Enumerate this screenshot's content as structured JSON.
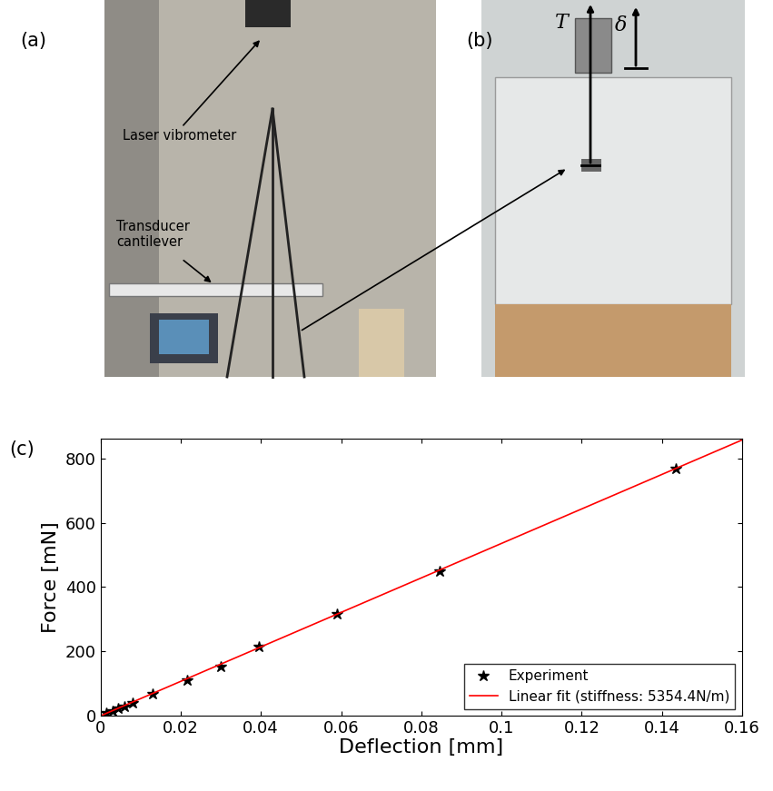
{
  "panels": {
    "a": {
      "label": "(a)",
      "annotations": [
        "Laser vibrometer",
        "Transducer\ncantilever"
      ]
    },
    "b": {
      "label": "(b)",
      "annotations": [
        "T",
        "δ"
      ]
    },
    "c": {
      "label": "(c)"
    }
  },
  "chart_data": {
    "type": "scatter",
    "x_label": "Deflection [mm]",
    "y_label": "Force [mN]",
    "xlim": [
      0,
      0.16
    ],
    "xticks": [
      0,
      0.02,
      0.04,
      0.06,
      0.08,
      0.1,
      0.12,
      0.14,
      0.16
    ],
    "ylim": [
      0,
      860
    ],
    "yticks": [
      0,
      200,
      400,
      600,
      800
    ],
    "grid": false,
    "legend": "lower right",
    "series": [
      {
        "name": "Experiment",
        "type": "scatter",
        "color": "#000000",
        "marker": "star",
        "x": [
          0.0015,
          0.003,
          0.0045,
          0.006,
          0.008,
          0.013,
          0.0215,
          0.03,
          0.0395,
          0.059,
          0.0845,
          0.1435
        ],
        "values": [
          8,
          15,
          22,
          30,
          40,
          68,
          112,
          152,
          215,
          318,
          448,
          768
        ]
      },
      {
        "name": "Linear fit (stiffness: 5354.4N/m)",
        "type": "line",
        "color": "#ff0000",
        "line_style": "solid",
        "x": [
          0,
          0.16
        ],
        "values": [
          0,
          857
        ]
      }
    ]
  }
}
